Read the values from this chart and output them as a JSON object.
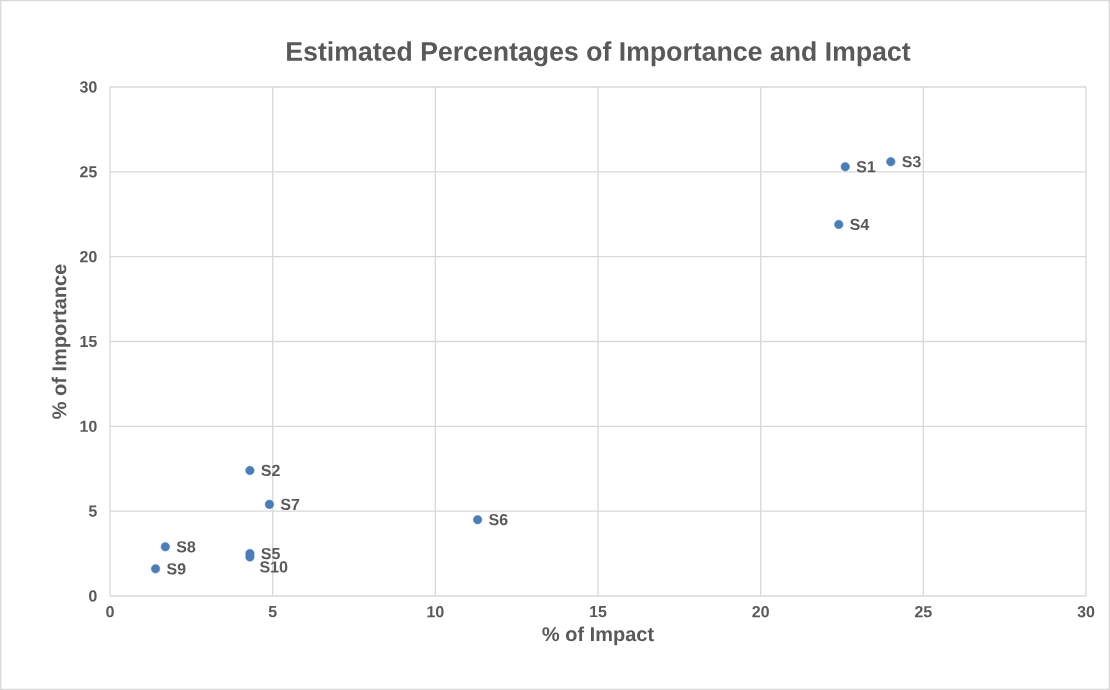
{
  "chart_data": {
    "type": "scatter",
    "title": "Estimated Percentages of Importance and Impact",
    "xlabel": "% of Impact",
    "ylabel": "% of Importance",
    "x": [
      22.6,
      4.3,
      24.0,
      22.4,
      4.3,
      11.3,
      4.9,
      1.7,
      1.4,
      4.3
    ],
    "values": [
      25.3,
      7.4,
      25.6,
      21.9,
      2.5,
      4.5,
      5.4,
      2.9,
      1.6,
      2.3
    ],
    "color": "#4a7ebb",
    "marker": "circle",
    "grid": true,
    "xlim": [
      0,
      30
    ],
    "ylim": [
      0,
      30
    ],
    "xticks": [
      0,
      5,
      10,
      15,
      20,
      25,
      30
    ],
    "yticks": [
      0,
      5,
      10,
      15,
      20,
      25,
      30
    ],
    "annotations": [
      {
        "text": "S1",
        "x": 22.6,
        "y": 25.3
      },
      {
        "text": "S2",
        "x": 4.3,
        "y": 7.4
      },
      {
        "text": "S3",
        "x": 24.0,
        "y": 25.6
      },
      {
        "text": "S4",
        "x": 22.4,
        "y": 21.9
      },
      {
        "text": "S5",
        "x": 4.3,
        "y": 2.5
      },
      {
        "text": "S6",
        "x": 11.3,
        "y": 4.5
      },
      {
        "text": "S7",
        "x": 4.9,
        "y": 5.4
      },
      {
        "text": "S8",
        "x": 1.7,
        "y": 2.9
      },
      {
        "text": "S9",
        "x": 1.4,
        "y": 1.6
      },
      {
        "text": "S10",
        "x": 4.3,
        "y": 2.3
      }
    ]
  }
}
